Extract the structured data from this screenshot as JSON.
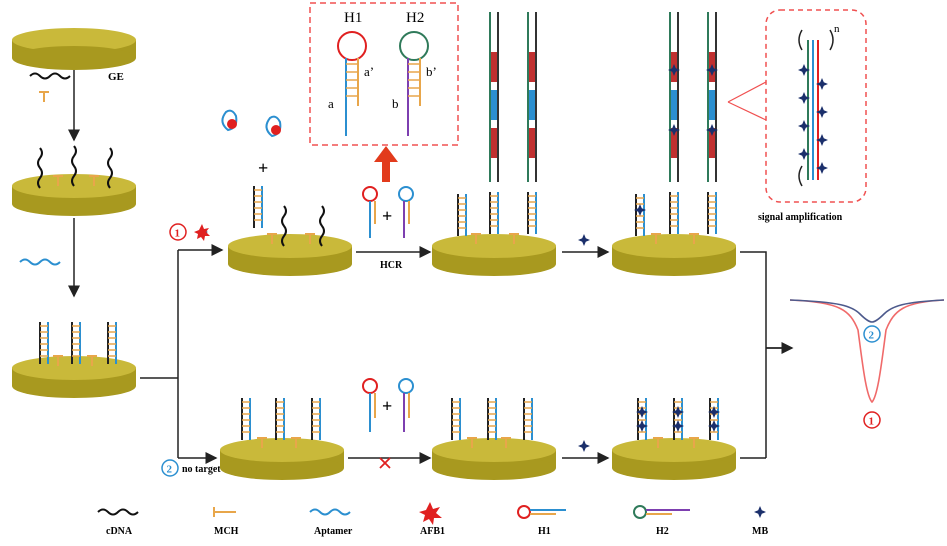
{
  "labels": {
    "ge": "GE",
    "hcr": "HCR",
    "no_target": "no target",
    "signal_amplification": "signal amplification",
    "h1": "H1",
    "h2": "H2",
    "seg_a": "a",
    "seg_a_prime": "a’",
    "seg_b": "b",
    "seg_b_prime": "b’",
    "plus": "+",
    "repeat_n": "n",
    "path_1": "1",
    "path_2": "2"
  },
  "legend": [
    {
      "key": "cdna",
      "label": "cDNA"
    },
    {
      "key": "mch",
      "label": "MCH"
    },
    {
      "key": "aptamer",
      "label": "Aptamer"
    },
    {
      "key": "afb1",
      "label": "AFB1"
    },
    {
      "key": "h1",
      "label": "H1"
    },
    {
      "key": "h2",
      "label": "H2"
    },
    {
      "key": "mb",
      "label": "MB"
    }
  ],
  "colors": {
    "electrode_top": "#c9b93a",
    "electrode_side": "#a8991f",
    "cdna": "#1a1a1a",
    "mch": "#e8a64a",
    "aptamer": "#2b8fd0",
    "afb1": "#e02020",
    "h1_loop": "#e02020",
    "h2_loop": "#2f7a5a",
    "mb": "#1b2f6b",
    "signal_1": "#f06a6a",
    "signal_2": "#4d5a8c",
    "arrow_red": "#e23b1c",
    "dashed_box": "#f05050"
  }
}
